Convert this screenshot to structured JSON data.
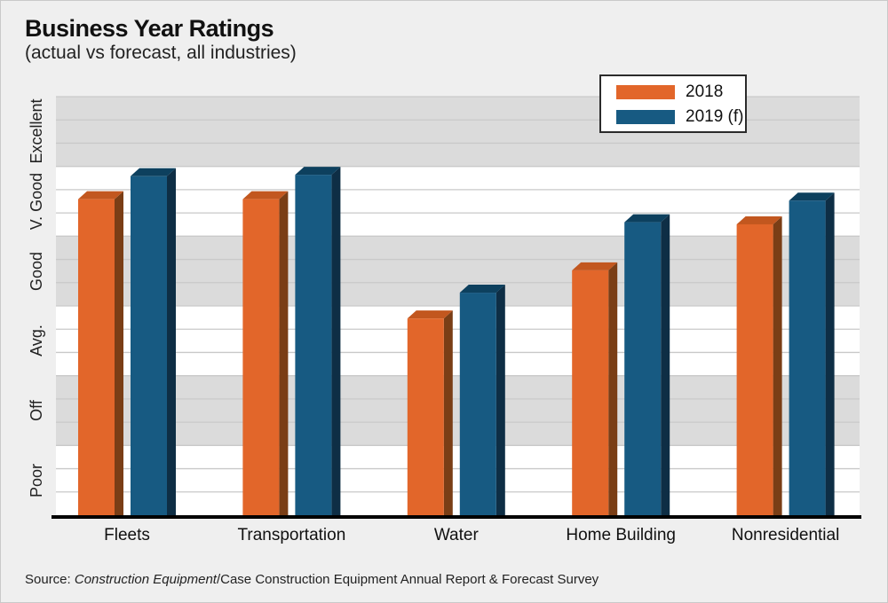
{
  "page": {
    "title": "Business Year Ratings",
    "subtitle": "(actual vs forecast, all industries)",
    "source_prefix": "Source: ",
    "source_italic": "Construction Equipment",
    "source_rest": "/Case Construction Equipment Annual Report & Forecast Survey"
  },
  "colors": {
    "page_background": "#efefef",
    "band_gray": "#dbdbdb",
    "band_white": "#ffffff",
    "gridline": "#c9c9c9",
    "axis_line": "#000000",
    "legend_border": "#2b2b2b",
    "orange": "#e2662a",
    "blue": "#175a82"
  },
  "chart_data": {
    "type": "bar",
    "title": "Business Year Ratings",
    "subtitle": "(actual vs forecast, all industries)",
    "categories": [
      "Fleets",
      "Transportation",
      "Water",
      "Home Building",
      "Nonresidential"
    ],
    "series": [
      {
        "name": "2018",
        "color": "#e2662a",
        "side_color": "#7a3e16",
        "top_color": "#c2571f",
        "values": [
          4.53,
          4.53,
          2.82,
          3.51,
          4.17
        ]
      },
      {
        "name": "2019 (f)",
        "color": "#175a82",
        "side_color": "#0e2e45",
        "top_color": "#0d405e",
        "values": [
          4.86,
          4.88,
          3.19,
          4.2,
          4.51
        ]
      }
    ],
    "y_axis": {
      "tick_labels_bottom_to_top": [
        "Poor",
        "Off",
        "Avg.",
        "Good",
        "V. Good",
        "Excellent"
      ],
      "ylim": [
        0,
        6
      ],
      "scale_note": "one unit per rating band; values measured from axis bottom on 0-6 scale",
      "minor_gridlines_per_band": 3,
      "band_fill_order_top_to_bottom": [
        "#dbdbdb",
        "#ffffff",
        "#dbdbdb",
        "#ffffff",
        "#dbdbdb",
        "#ffffff"
      ]
    },
    "xlabel": "",
    "ylabel": "",
    "grid": true,
    "legend_position": "top-right",
    "style": "3d-columns"
  }
}
